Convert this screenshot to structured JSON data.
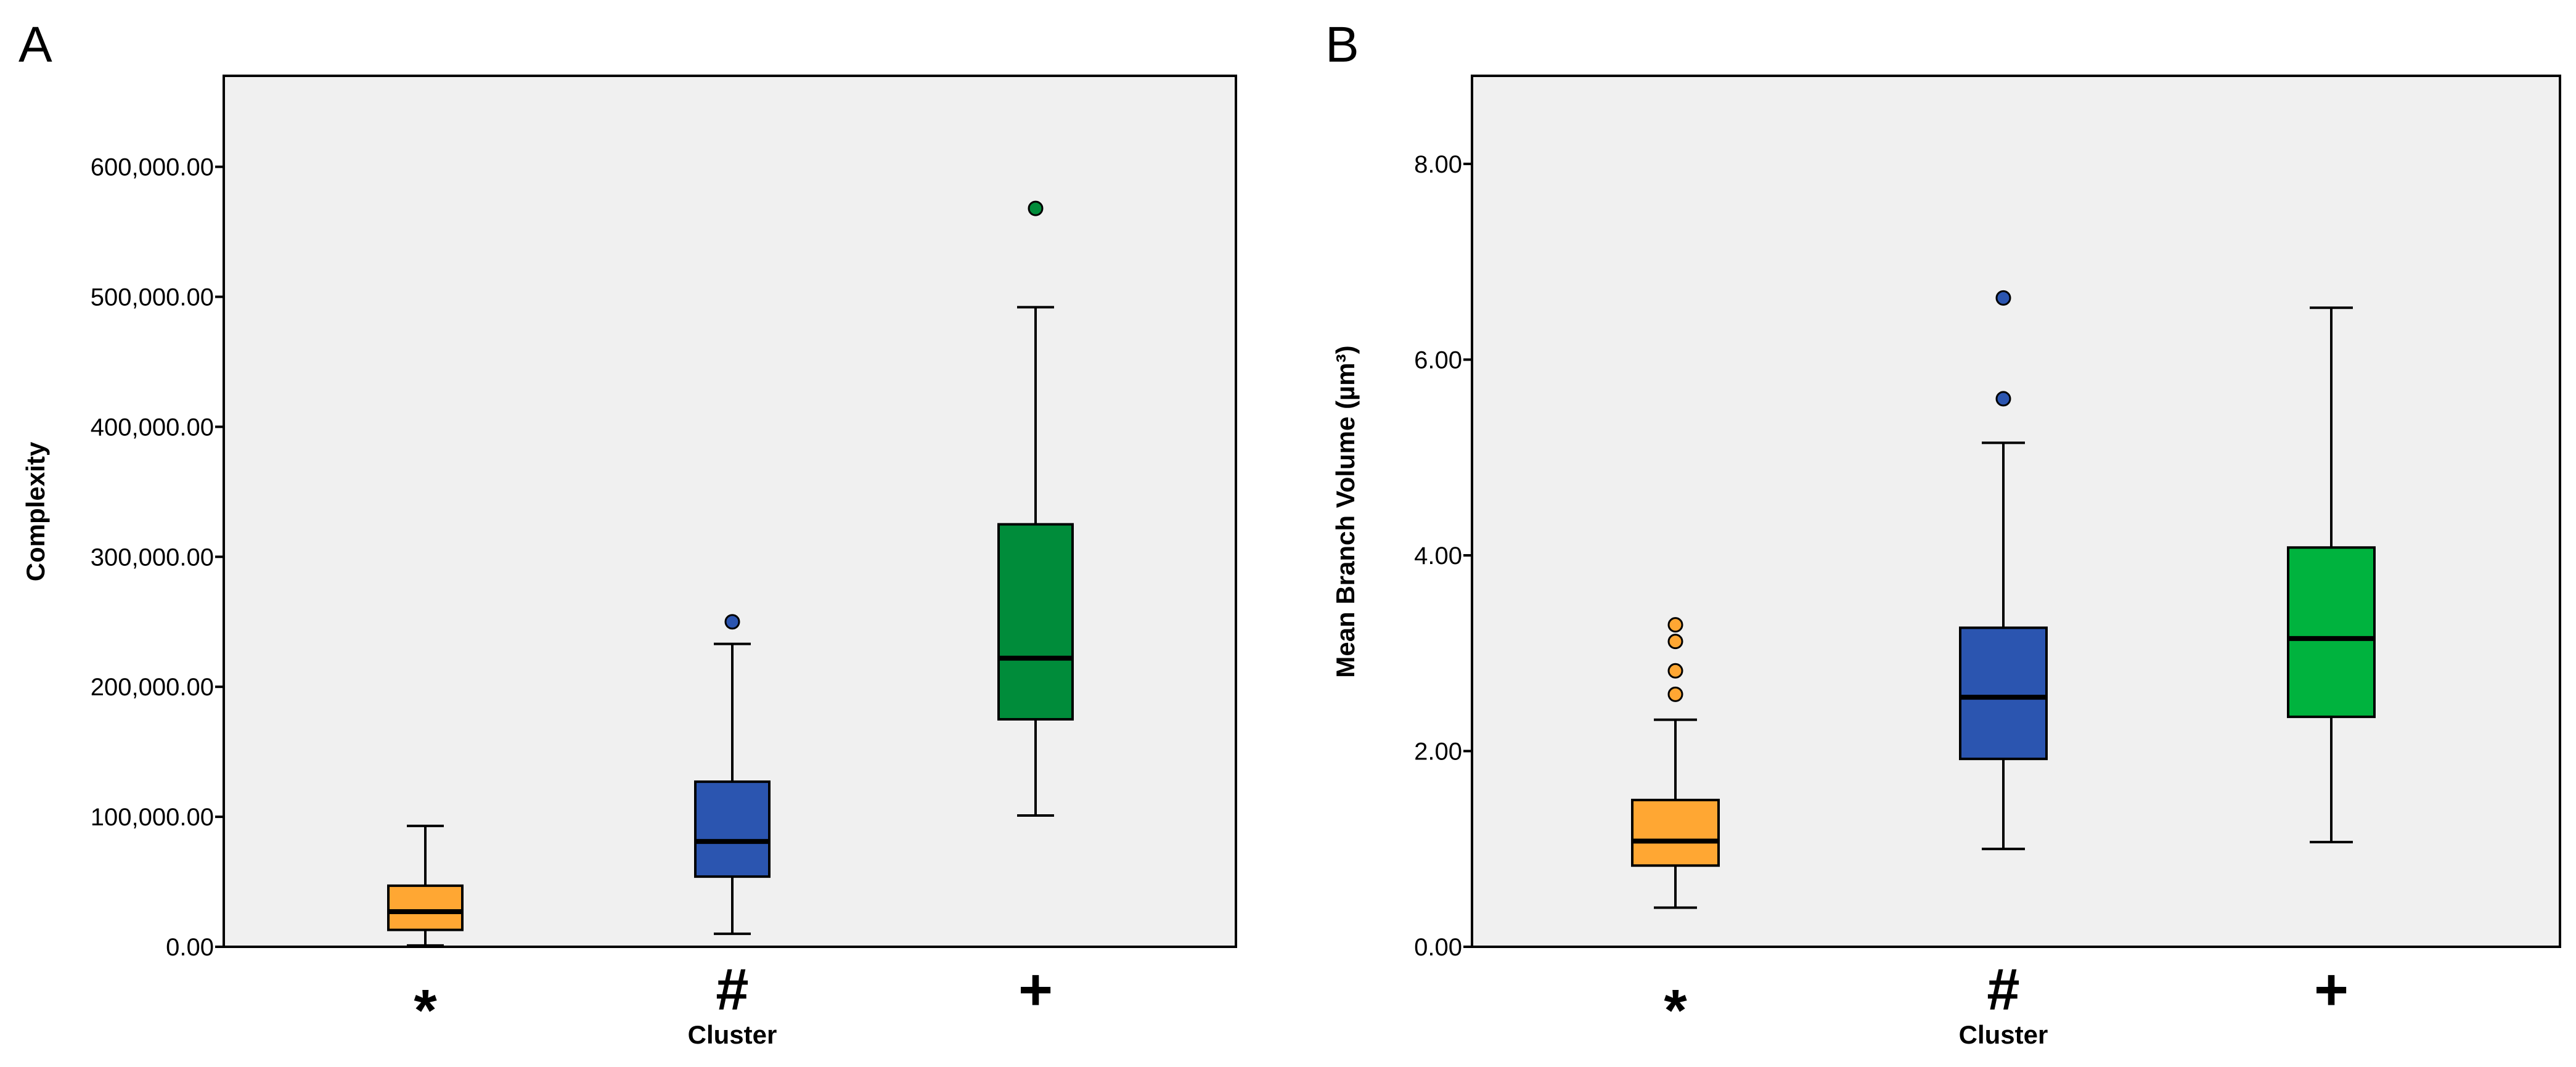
{
  "chart_data": [
    {
      "panel": "A",
      "type": "box",
      "title": "",
      "xlabel": "Cluster",
      "ylabel": "Complexity",
      "ylim": [
        0,
        670000
      ],
      "yticks": [
        0,
        100000,
        200000,
        300000,
        400000,
        500000,
        600000
      ],
      "ytick_labels": [
        "0.00",
        "100,000.00",
        "200,000.00",
        "300,000.00",
        "400,000.00",
        "500,000.00",
        "600,000.00"
      ],
      "categories": [
        "*",
        "#",
        "+"
      ],
      "boxes": [
        {
          "min": 1000,
          "q1": 13000,
          "median": 27000,
          "q3": 47000,
          "max": 93000,
          "outliers": [],
          "color": "#FFA733"
        },
        {
          "min": 10000,
          "q1": 54000,
          "median": 81000,
          "q3": 127000,
          "max": 233000,
          "outliers": [
            250000
          ],
          "color": "#2B55B0"
        },
        {
          "min": 101000,
          "q1": 175000,
          "median": 222000,
          "q3": 325000,
          "max": 492000,
          "outliers": [
            568000
          ],
          "color": "#008C3A"
        }
      ]
    },
    {
      "panel": "B",
      "type": "box",
      "title": "",
      "xlabel": "Cluster",
      "ylabel": "Mean Branch Volume (µm³)",
      "ylim": [
        0,
        8.9
      ],
      "yticks": [
        0,
        2,
        4,
        6,
        8
      ],
      "ytick_labels": [
        "0.00",
        "2.00",
        "4.00",
        "6.00",
        "8.00"
      ],
      "categories": [
        "*",
        "#",
        "+"
      ],
      "boxes": [
        {
          "min": 0.4,
          "q1": 0.83,
          "median": 1.08,
          "q3": 1.5,
          "max": 2.32,
          "outliers": [
            2.58,
            2.82,
            3.12,
            3.29
          ],
          "color": "#FFA733"
        },
        {
          "min": 1.0,
          "q1": 1.92,
          "median": 2.55,
          "q3": 3.26,
          "max": 5.15,
          "outliers": [
            5.6,
            6.63
          ],
          "color": "#2B55B0"
        },
        {
          "min": 1.07,
          "q1": 2.35,
          "median": 3.15,
          "q3": 4.08,
          "max": 6.53,
          "outliers": [],
          "color": "#00B33E"
        }
      ]
    }
  ]
}
